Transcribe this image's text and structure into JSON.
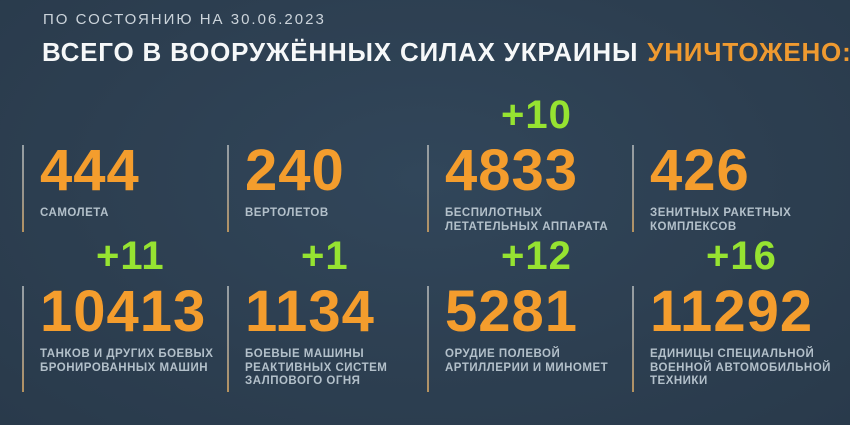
{
  "meta": {
    "background_color": "#2d3f51",
    "accent_orange": "#f49d2d",
    "delta_green": "#96e331",
    "label_color": "#b3c0ca",
    "divider_color": "#97a0a6"
  },
  "header": {
    "date_line": "ПО СОСТОЯНИЮ НА 30.06.2023",
    "title_main": "ВСЕГО В ВООРУЖЁННЫХ СИЛАХ УКРАИНЫ",
    "title_highlight": "УНИЧТОЖЕНО:"
  },
  "stats": [
    {
      "value": "444",
      "delta": "",
      "label_lines": [
        "САМОЛЕТА"
      ]
    },
    {
      "value": "240",
      "delta": "",
      "label_lines": [
        "ВЕРТОЛЕТОВ"
      ]
    },
    {
      "value": "4833",
      "delta": "+10",
      "label_lines": [
        "БЕСПИЛОТНЫХ",
        "ЛЕТАТЕЛЬНЫХ АППАРАТА"
      ]
    },
    {
      "value": "426",
      "delta": "",
      "label_lines": [
        "ЗЕНИТНЫХ РАКЕТНЫХ",
        "КОМПЛЕКСОВ"
      ]
    },
    {
      "value": "10413",
      "delta": "+11",
      "label_lines": [
        "ТАНКОВ И ДРУГИХ БОЕВЫХ",
        "БРОНИРОВАННЫХ МАШИН"
      ]
    },
    {
      "value": "1134",
      "delta": "+1",
      "label_lines": [
        "БОЕВЫЕ МАШИНЫ",
        "РЕАКТИВНЫХ СИСТЕМ",
        "ЗАЛПОВОГО ОГНЯ"
      ]
    },
    {
      "value": "5281",
      "delta": "+12",
      "label_lines": [
        "ОРУДИЕ ПОЛЕВОЙ",
        "АРТИЛЛЕРИИ И МИНОМЕТ"
      ]
    },
    {
      "value": "11292",
      "delta": "+16",
      "label_lines": [
        "ЕДИНИЦЫ СПЕЦИАЛЬНОЙ",
        "ВОЕННОЙ АВТОМОБИЛЬНОЙ",
        "ТЕХНИКИ"
      ]
    }
  ],
  "chart_data": {
    "type": "table",
    "title": "ВСЕГО В ВООРУЖЁННЫХ СИЛАХ УКРАИНЫ УНИЧТОЖЕНО:",
    "subtitle": "ПО СОСТОЯНИЮ НА 30.06.2023",
    "categories": [
      "САМОЛЕТА",
      "ВЕРТОЛЕТОВ",
      "БЕСПИЛОТНЫХ ЛЕТАТЕЛЬНЫХ АППАРАТА",
      "ЗЕНИТНЫХ РАКЕТНЫХ КОМПЛЕКСОВ",
      "ТАНКОВ И ДРУГИХ БОЕВЫХ БРОНИРОВАННЫХ МАШИН",
      "БОЕВЫЕ МАШИНЫ РЕАКТИВНЫХ СИСТЕМ ЗАЛПОВОГО ОГНЯ",
      "ОРУДИЕ ПОЛЕВОЙ АРТИЛЛЕРИИ И МИНОМЕТ",
      "ЕДИНИЦЫ СПЕЦИАЛЬНОЙ ВОЕННОЙ АВТОМОБИЛЬНОЙ ТЕХНИКИ"
    ],
    "values": [
      444,
      240,
      4833,
      426,
      10413,
      1134,
      5281,
      11292
    ],
    "daily_increase": [
      null,
      null,
      10,
      null,
      11,
      1,
      12,
      16
    ],
    "layout": "2 rows x 4 columns of stat blocks, green deltas above values"
  }
}
